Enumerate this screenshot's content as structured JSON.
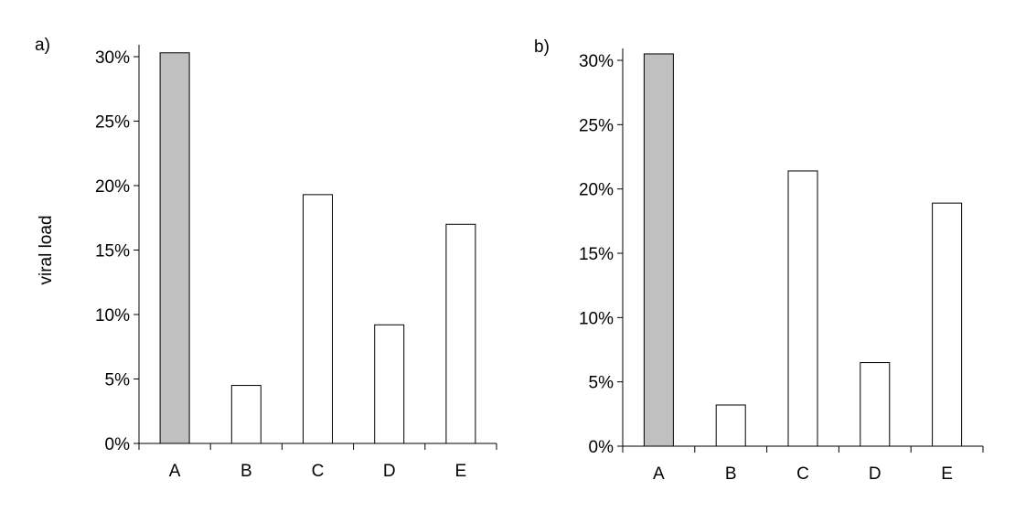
{
  "chart_data": [
    {
      "type": "bar",
      "panel_label": "a)",
      "ylabel": "viral load",
      "categories": [
        "A",
        "B",
        "C",
        "D",
        "E"
      ],
      "values": [
        30.3,
        4.5,
        19.3,
        9.2,
        17.0
      ],
      "bar_colors": [
        "#c0c0c0",
        "#ffffff",
        "#ffffff",
        "#ffffff",
        "#ffffff"
      ],
      "ylim": [
        0,
        30
      ],
      "yticks": [
        "0%",
        "5%",
        "10%",
        "15%",
        "20%",
        "25%",
        "30%"
      ],
      "grid": false
    },
    {
      "type": "bar",
      "panel_label": "b)",
      "ylabel": "",
      "categories": [
        "A",
        "B",
        "C",
        "D",
        "E"
      ],
      "values": [
        30.5,
        3.2,
        21.4,
        6.5,
        18.9
      ],
      "bar_colors": [
        "#c0c0c0",
        "#ffffff",
        "#ffffff",
        "#ffffff",
        "#ffffff"
      ],
      "ylim": [
        0,
        30
      ],
      "yticks": [
        "0%",
        "5%",
        "10%",
        "15%",
        "20%",
        "25%",
        "30%"
      ],
      "grid": false
    }
  ]
}
